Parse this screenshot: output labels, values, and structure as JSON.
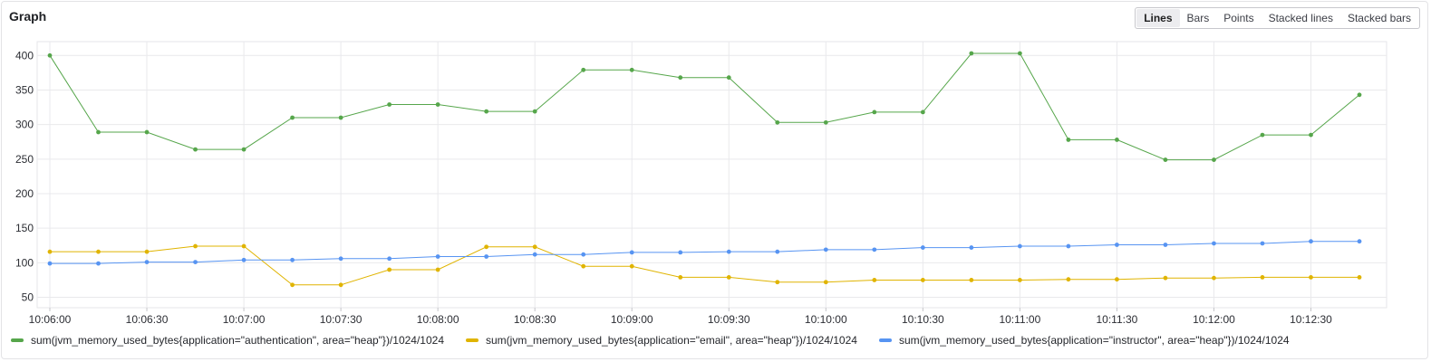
{
  "panel": {
    "title": "Graph",
    "modes": [
      "Lines",
      "Bars",
      "Points",
      "Stacked lines",
      "Stacked bars"
    ],
    "active_mode": "Lines"
  },
  "chart_data": {
    "type": "line",
    "title": "",
    "xlabel": "",
    "ylabel": "",
    "x": [
      "10:06:00",
      "10:06:15",
      "10:06:30",
      "10:06:45",
      "10:07:00",
      "10:07:15",
      "10:07:30",
      "10:07:45",
      "10:08:00",
      "10:08:15",
      "10:08:30",
      "10:08:45",
      "10:09:00",
      "10:09:15",
      "10:09:30",
      "10:09:45",
      "10:10:00",
      "10:10:15",
      "10:10:30",
      "10:10:45",
      "10:11:00",
      "10:11:15",
      "10:11:30",
      "10:11:45",
      "10:12:00",
      "10:12:15",
      "10:12:30",
      "10:12:45"
    ],
    "x_ticks": [
      "10:06:00",
      "10:06:30",
      "10:07:00",
      "10:07:30",
      "10:08:00",
      "10:08:30",
      "10:09:00",
      "10:09:30",
      "10:10:00",
      "10:10:30",
      "10:11:00",
      "10:11:30",
      "10:12:00",
      "10:12:30"
    ],
    "y_ticks": [
      50,
      100,
      150,
      200,
      250,
      300,
      350,
      400
    ],
    "ylim": [
      35,
      420
    ],
    "grid": true,
    "legend_position": "bottom",
    "series": [
      {
        "name": "sum(jvm_memory_used_bytes{application=\"authentication\", area=\"heap\"})/1024/1024",
        "color": "#56a64b",
        "values": [
          400,
          289,
          289,
          264,
          264,
          310,
          310,
          329,
          329,
          319,
          319,
          379,
          379,
          368,
          368,
          303,
          303,
          318,
          318,
          403,
          403,
          278,
          278,
          249,
          249,
          285,
          285,
          343
        ]
      },
      {
        "name": "sum(jvm_memory_used_bytes{application=\"email\", area=\"heap\"})/1024/1024",
        "color": "#e0b400",
        "values": [
          116,
          116,
          116,
          124,
          124,
          68,
          68,
          90,
          90,
          123,
          123,
          95,
          95,
          79,
          79,
          72,
          72,
          75,
          75,
          75,
          75,
          76,
          76,
          78,
          78,
          79,
          79,
          79
        ]
      },
      {
        "name": "sum(jvm_memory_used_bytes{application=\"instructor\", area=\"heap\"})/1024/1024",
        "color": "#5794f2",
        "values": [
          99,
          99,
          101,
          101,
          104,
          104,
          106,
          106,
          109,
          109,
          112,
          112,
          115,
          115,
          116,
          116,
          119,
          119,
          122,
          122,
          124,
          124,
          126,
          126,
          128,
          128,
          131,
          131
        ]
      }
    ]
  }
}
